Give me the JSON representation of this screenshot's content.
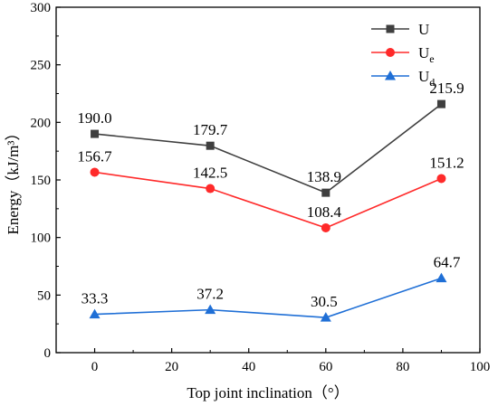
{
  "chart_data": {
    "type": "line",
    "title": "",
    "xlabel": "Top joint inclination（°）",
    "ylabel": "Energy（kJ/m³）",
    "xlim": [
      -10,
      100
    ],
    "ylim": [
      0,
      300
    ],
    "xticks": [
      0,
      20,
      40,
      60,
      80,
      100
    ],
    "yticks": [
      0,
      50,
      100,
      150,
      200,
      250,
      300
    ],
    "x": [
      0,
      30,
      60,
      90
    ],
    "grid": false,
    "legend_position": "top-right",
    "series": [
      {
        "name": "U",
        "name_sub": "",
        "color": "#3f3f3f",
        "marker": "square",
        "values": [
          190.0,
          179.7,
          138.9,
          215.9
        ],
        "labels": [
          "190.0",
          "179.7",
          "138.9",
          "215.9"
        ]
      },
      {
        "name": "U",
        "name_sub": "e",
        "color": "#ff2a2a",
        "marker": "circle",
        "values": [
          156.7,
          142.5,
          108.4,
          151.2
        ],
        "labels": [
          "156.7",
          "142.5",
          "108.4",
          "151.2"
        ]
      },
      {
        "name": "U",
        "name_sub": "d",
        "color": "#1f6fd6",
        "marker": "triangle",
        "values": [
          33.3,
          37.2,
          30.5,
          64.7
        ],
        "labels": [
          "33.3",
          "37.2",
          "30.5",
          "64.7"
        ]
      }
    ]
  }
}
